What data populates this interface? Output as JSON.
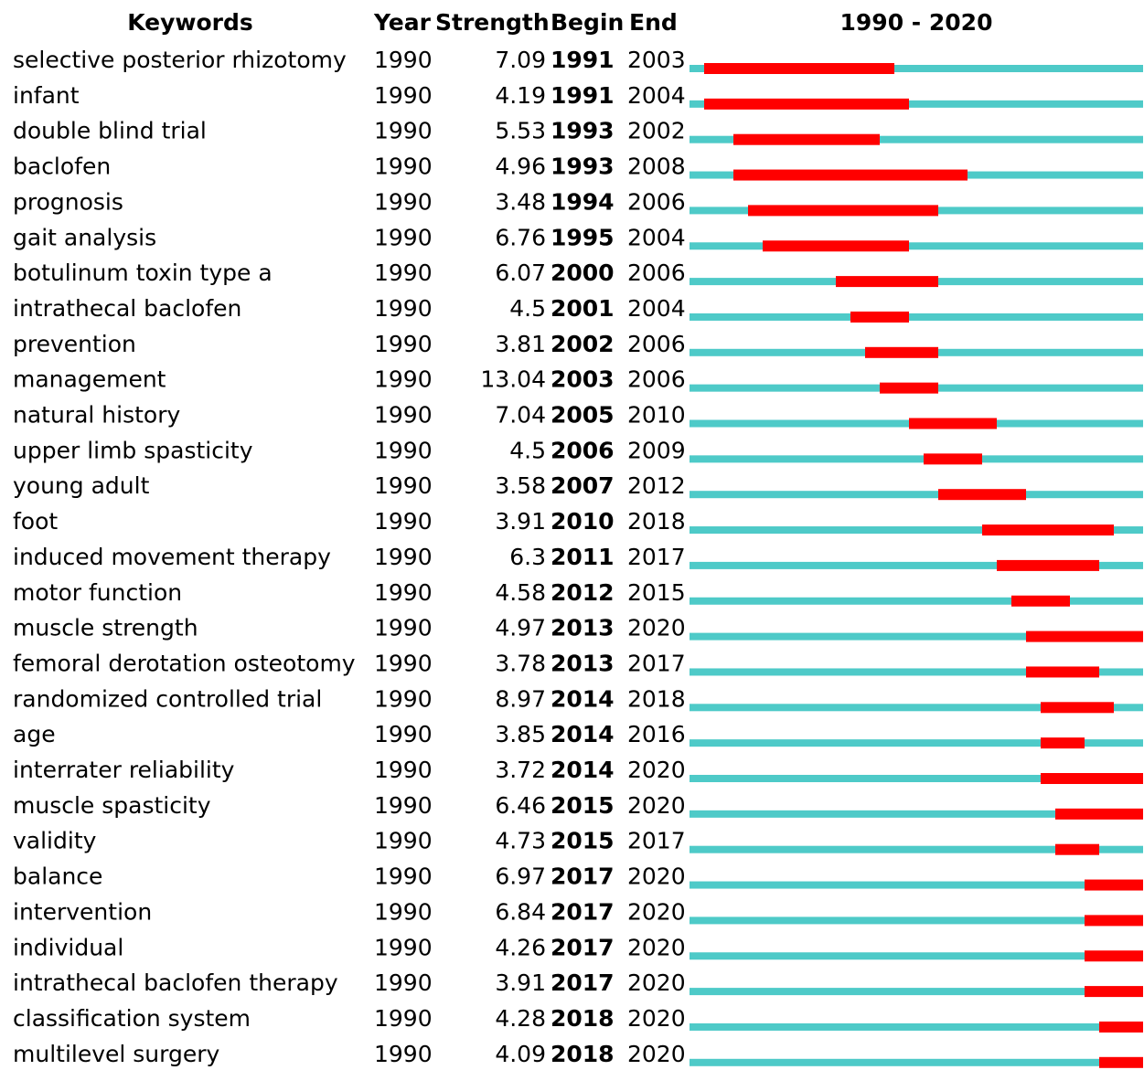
{
  "chart_data": {
    "type": "burst",
    "headers": [
      "Keywords",
      "Year",
      "Strength",
      "Begin",
      "End"
    ],
    "range_label": "1990 - 2020",
    "xlim": [
      1990,
      2020
    ],
    "base_color": "#4ecac8",
    "burst_color": "#ff0000",
    "rows": [
      {
        "keyword": "selective posterior rhizotomy",
        "year": 1990,
        "strength": 7.09,
        "begin": 1991,
        "end": 2003
      },
      {
        "keyword": "infant",
        "year": 1990,
        "strength": 4.19,
        "begin": 1991,
        "end": 2004
      },
      {
        "keyword": "double blind trial",
        "year": 1990,
        "strength": 5.53,
        "begin": 1993,
        "end": 2002
      },
      {
        "keyword": "baclofen",
        "year": 1990,
        "strength": 4.96,
        "begin": 1993,
        "end": 2008
      },
      {
        "keyword": "prognosis",
        "year": 1990,
        "strength": 3.48,
        "begin": 1994,
        "end": 2006
      },
      {
        "keyword": "gait analysis",
        "year": 1990,
        "strength": 6.76,
        "begin": 1995,
        "end": 2004
      },
      {
        "keyword": "botulinum toxin type a",
        "year": 1990,
        "strength": 6.07,
        "begin": 2000,
        "end": 2006
      },
      {
        "keyword": "intrathecal baclofen",
        "year": 1990,
        "strength": 4.5,
        "begin": 2001,
        "end": 2004
      },
      {
        "keyword": "prevention",
        "year": 1990,
        "strength": 3.81,
        "begin": 2002,
        "end": 2006
      },
      {
        "keyword": "management",
        "year": 1990,
        "strength": 13.04,
        "begin": 2003,
        "end": 2006
      },
      {
        "keyword": "natural history",
        "year": 1990,
        "strength": 7.04,
        "begin": 2005,
        "end": 2010
      },
      {
        "keyword": "upper limb spasticity",
        "year": 1990,
        "strength": 4.5,
        "begin": 2006,
        "end": 2009
      },
      {
        "keyword": "young adult",
        "year": 1990,
        "strength": 3.58,
        "begin": 2007,
        "end": 2012
      },
      {
        "keyword": "foot",
        "year": 1990,
        "strength": 3.91,
        "begin": 2010,
        "end": 2018
      },
      {
        "keyword": "induced movement therapy",
        "year": 1990,
        "strength": 6.3,
        "begin": 2011,
        "end": 2017
      },
      {
        "keyword": "motor function",
        "year": 1990,
        "strength": 4.58,
        "begin": 2012,
        "end": 2015
      },
      {
        "keyword": "muscle strength",
        "year": 1990,
        "strength": 4.97,
        "begin": 2013,
        "end": 2020
      },
      {
        "keyword": "femoral derotation osteotomy",
        "year": 1990,
        "strength": 3.78,
        "begin": 2013,
        "end": 2017
      },
      {
        "keyword": "randomized controlled trial",
        "year": 1990,
        "strength": 8.97,
        "begin": 2014,
        "end": 2018
      },
      {
        "keyword": "age",
        "year": 1990,
        "strength": 3.85,
        "begin": 2014,
        "end": 2016
      },
      {
        "keyword": "interrater reliability",
        "year": 1990,
        "strength": 3.72,
        "begin": 2014,
        "end": 2020
      },
      {
        "keyword": "muscle spasticity",
        "year": 1990,
        "strength": 6.46,
        "begin": 2015,
        "end": 2020
      },
      {
        "keyword": "validity",
        "year": 1990,
        "strength": 4.73,
        "begin": 2015,
        "end": 2017
      },
      {
        "keyword": "balance",
        "year": 1990,
        "strength": 6.97,
        "begin": 2017,
        "end": 2020
      },
      {
        "keyword": "intervention",
        "year": 1990,
        "strength": 6.84,
        "begin": 2017,
        "end": 2020
      },
      {
        "keyword": "individual",
        "year": 1990,
        "strength": 4.26,
        "begin": 2017,
        "end": 2020
      },
      {
        "keyword": "intrathecal baclofen therapy",
        "year": 1990,
        "strength": 3.91,
        "begin": 2017,
        "end": 2020
      },
      {
        "keyword": "classification system",
        "year": 1990,
        "strength": 4.28,
        "begin": 2018,
        "end": 2020
      },
      {
        "keyword": "multilevel surgery",
        "year": 1990,
        "strength": 4.09,
        "begin": 2018,
        "end": 2020
      }
    ]
  }
}
